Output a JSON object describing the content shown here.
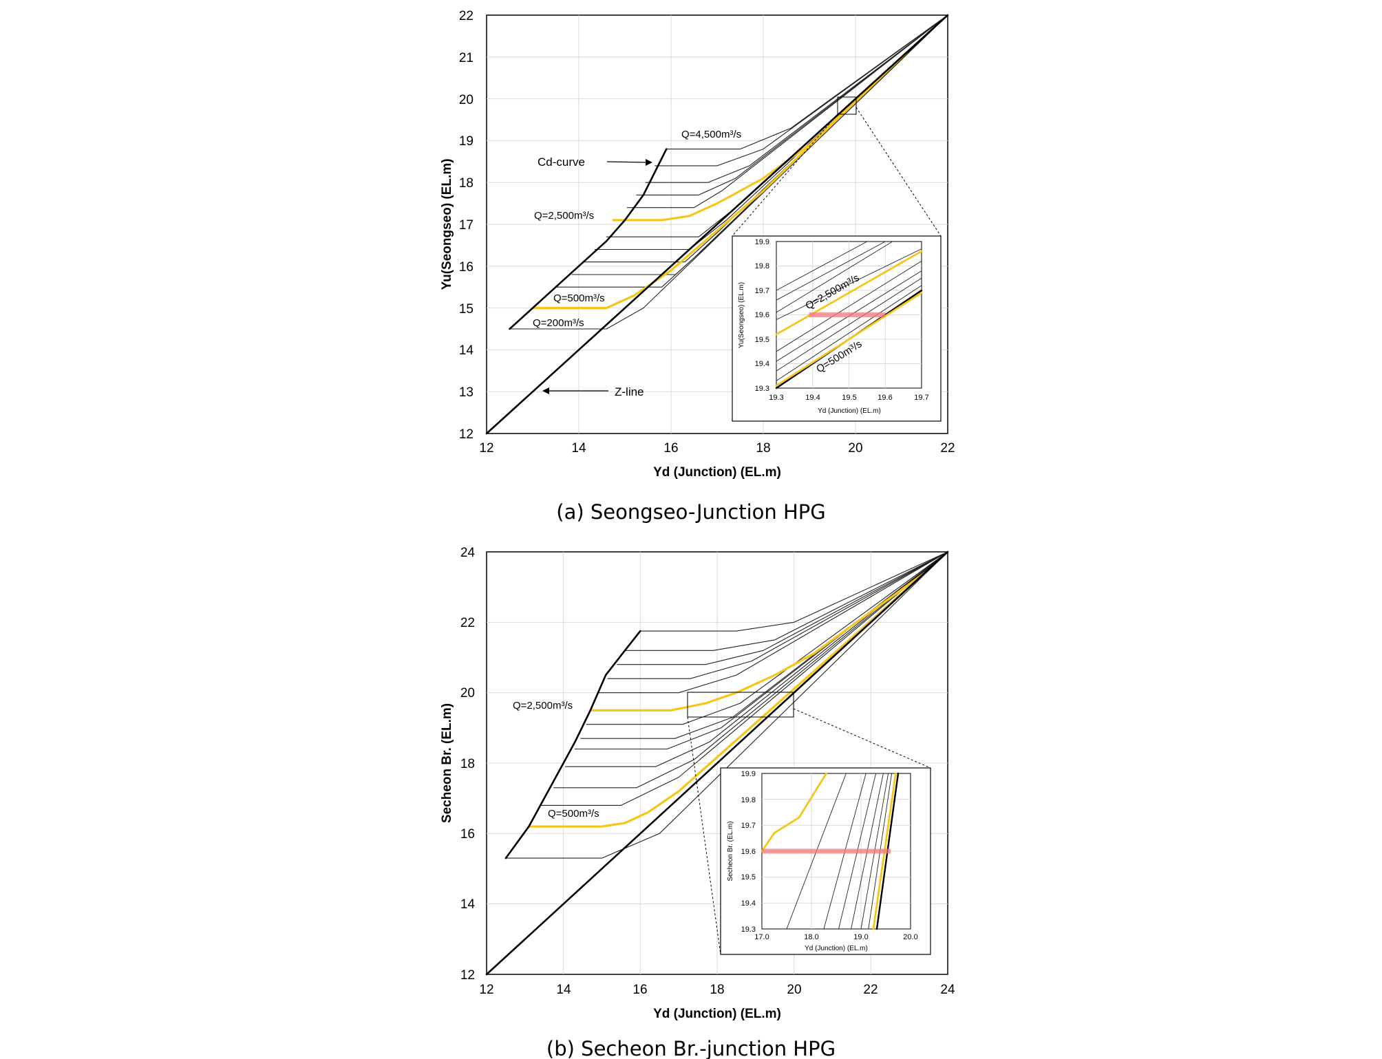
{
  "colors": {
    "highlight": "#f5c518",
    "reference": "#000000",
    "family": "#222222",
    "band": "#f07a7a",
    "grid": "#d9d9d9"
  },
  "chart_data": [
    {
      "id": "a",
      "type": "line",
      "caption": "(a) Seongseo-Junction HPG",
      "xlabel": "Yd (Junction) (EL.m)",
      "ylabel": "Yu(Seongseo) (EL.m)",
      "xlim": [
        12,
        22
      ],
      "ylim": [
        12,
        22
      ],
      "xticks": [
        "12",
        "14",
        "16",
        "18",
        "20",
        "22"
      ],
      "yticks": [
        "12",
        "13",
        "14",
        "15",
        "16",
        "17",
        "18",
        "19",
        "20",
        "21",
        "22"
      ],
      "grid": true,
      "annotations": {
        "cd": "Cd-curve",
        "z": "Z-line",
        "q4500": "Q=4,500m³/s",
        "q2500": "Q=2,500m³/s",
        "q500": "Q=500m³/s",
        "q200": "Q=200m³/s"
      },
      "z_line": {
        "x": [
          12,
          22
        ],
        "y": [
          12,
          22
        ]
      },
      "cd_curve": {
        "x": [
          12.5,
          13.0,
          13.6,
          14.1,
          14.6,
          15.0,
          15.4,
          15.9
        ],
        "y": [
          14.5,
          15.0,
          15.6,
          16.1,
          16.6,
          17.1,
          17.7,
          18.8
        ]
      },
      "family": [
        {
          "x": [
            12.5,
            14.6,
            15.4,
            22
          ],
          "y": [
            14.5,
            14.5,
            15.0,
            22
          ]
        },
        {
          "x": [
            13.5,
            15.8,
            16.5,
            22
          ],
          "y": [
            15.5,
            15.5,
            16.2,
            22
          ]
        },
        {
          "x": [
            13.85,
            16.1,
            16.8,
            22
          ],
          "y": [
            15.8,
            15.8,
            16.5,
            22
          ]
        },
        {
          "x": [
            14.1,
            16.3,
            17.0,
            22
          ],
          "y": [
            16.1,
            16.1,
            16.8,
            22
          ]
        },
        {
          "x": [
            14.35,
            16.4,
            17.2,
            22
          ],
          "y": [
            16.4,
            16.4,
            17.1,
            22
          ]
        },
        {
          "x": [
            14.6,
            16.6,
            17.4,
            22
          ],
          "y": [
            16.7,
            16.7,
            17.4,
            22
          ]
        },
        {
          "x": [
            15.05,
            16.5,
            17.1,
            22
          ],
          "y": [
            17.4,
            17.4,
            17.8,
            22
          ]
        },
        {
          "x": [
            15.25,
            16.6,
            17.4,
            22
          ],
          "y": [
            17.7,
            17.7,
            18.1,
            22
          ]
        },
        {
          "x": [
            15.45,
            16.8,
            17.7,
            22
          ],
          "y": [
            18.0,
            18.0,
            18.4,
            22
          ]
        },
        {
          "x": [
            15.65,
            17.0,
            18.0,
            22
          ],
          "y": [
            18.4,
            18.4,
            18.8,
            22
          ]
        },
        {
          "x": [
            15.9,
            17.5,
            18.6,
            19.6,
            22
          ],
          "y": [
            18.8,
            18.8,
            19.3,
            20.1,
            22
          ]
        }
      ],
      "highlight": [
        {
          "name": "Q=2,500m³/s",
          "x": [
            14.75,
            15.8,
            16.4,
            17.0,
            18.0,
            19.0,
            21.1
          ],
          "y": [
            17.1,
            17.1,
            17.2,
            17.5,
            18.1,
            18.9,
            21.1
          ]
        },
        {
          "name": "Q=500m³/s",
          "x": [
            13.0,
            14.6,
            15.2,
            16.0,
            18.0,
            21.1
          ],
          "y": [
            15.0,
            15.0,
            15.3,
            15.9,
            17.8,
            21.1
          ]
        }
      ],
      "inset": {
        "xlabel": "Yd (Junction) (EL.m)",
        "ylabel": "Yu(Seongseo) (EL.m)",
        "xlim": [
          19.3,
          19.7
        ],
        "ylim": [
          19.3,
          19.9
        ],
        "xticks": [
          "19.3",
          "19.4",
          "19.5",
          "19.6",
          "19.7"
        ],
        "yticks": [
          "19.3",
          "19.4",
          "19.5",
          "19.6",
          "19.7",
          "19.8",
          "19.9"
        ],
        "annotations": {
          "q2500": "Q=2,500m³/s",
          "q500": "Q=500m³/s"
        },
        "family": [
          {
            "x": [
              19.3,
              19.55
            ],
            "y": [
              19.7,
              19.9
            ]
          },
          {
            "x": [
              19.3,
              19.6
            ],
            "y": [
              19.66,
              19.9
            ]
          },
          {
            "x": [
              19.3,
              19.62
            ],
            "y": [
              19.61,
              19.9
            ]
          },
          {
            "x": [
              19.3,
              19.7
            ],
            "y": [
              19.58,
              19.87
            ]
          },
          {
            "x": [
              19.3,
              19.7
            ],
            "y": [
              19.45,
              19.82
            ]
          },
          {
            "x": [
              19.3,
              19.7
            ],
            "y": [
              19.41,
              19.78
            ]
          },
          {
            "x": [
              19.3,
              19.7
            ],
            "y": [
              19.37,
              19.75
            ]
          },
          {
            "x": [
              19.3,
              19.7
            ],
            "y": [
              19.33,
              19.72
            ]
          }
        ],
        "highlight": [
          {
            "name": "Q=2,500m³/s",
            "x": [
              19.3,
              19.7
            ],
            "y": [
              19.52,
              19.86
            ]
          },
          {
            "name": "Q=500m³/s",
            "x": [
              19.3,
              19.7
            ],
            "y": [
              19.31,
              19.69
            ]
          }
        ],
        "z_line": {
          "x": [
            19.3,
            19.7
          ],
          "y": [
            19.3,
            19.7
          ]
        },
        "band": {
          "x": [
            19.39,
            19.6
          ],
          "y": 19.6
        }
      }
    },
    {
      "id": "b",
      "type": "line",
      "caption": "(b) Secheon Br.-junction HPG",
      "xlabel": "Yd (Junction) (EL.m)",
      "ylabel": "Secheon Br. (EL.m)",
      "xlim": [
        12,
        24
      ],
      "ylim": [
        12,
        24
      ],
      "xticks": [
        "12",
        "14",
        "16",
        "18",
        "20",
        "22",
        "24"
      ],
      "yticks": [
        "12",
        "14",
        "16",
        "18",
        "20",
        "22",
        "24"
      ],
      "grid": true,
      "annotations": {
        "q2500": "Q=2,500m³/s",
        "q500": "Q=500m³/s"
      },
      "z_line": {
        "x": [
          12,
          24
        ],
        "y": [
          12,
          24
        ]
      },
      "cd_curve": {
        "x": [
          12.5,
          13.1,
          13.7,
          14.3,
          14.7,
          15.1,
          15.6,
          16.0
        ],
        "y": [
          15.3,
          16.2,
          17.4,
          18.6,
          19.5,
          20.5,
          21.2,
          21.75
        ]
      },
      "family": [
        {
          "x": [
            12.5,
            15.0,
            16.5,
            24
          ],
          "y": [
            15.3,
            15.3,
            16.0,
            24
          ]
        },
        {
          "x": [
            13.4,
            15.5,
            17.0,
            24
          ],
          "y": [
            16.8,
            16.8,
            17.6,
            24
          ]
        },
        {
          "x": [
            13.75,
            15.9,
            17.4,
            24
          ],
          "y": [
            17.3,
            17.3,
            18.1,
            24
          ]
        },
        {
          "x": [
            14.05,
            16.4,
            17.8,
            24
          ],
          "y": [
            17.9,
            17.9,
            18.6,
            24
          ]
        },
        {
          "x": [
            14.3,
            16.7,
            18.1,
            24
          ],
          "y": [
            18.4,
            18.4,
            19.0,
            24
          ]
        },
        {
          "x": [
            14.45,
            16.9,
            18.4,
            24
          ],
          "y": [
            18.7,
            18.7,
            19.3,
            24
          ]
        },
        {
          "x": [
            14.6,
            17.1,
            18.6,
            24
          ],
          "y": [
            19.1,
            19.1,
            19.7,
            24
          ]
        },
        {
          "x": [
            14.9,
            17.0,
            18.5,
            24
          ],
          "y": [
            20.0,
            20.0,
            20.5,
            24
          ]
        },
        {
          "x": [
            15.15,
            17.3,
            18.9,
            24
          ],
          "y": [
            20.4,
            20.4,
            20.9,
            24
          ]
        },
        {
          "x": [
            15.4,
            17.7,
            19.2,
            24
          ],
          "y": [
            20.8,
            20.8,
            21.2,
            24
          ]
        },
        {
          "x": [
            15.6,
            17.9,
            19.5,
            24
          ],
          "y": [
            21.2,
            21.2,
            21.5,
            24
          ]
        },
        {
          "x": [
            16.0,
            18.5,
            20.0,
            24
          ],
          "y": [
            21.75,
            21.75,
            22.0,
            24
          ]
        }
      ],
      "highlight": [
        {
          "name": "Q=2,500m³/s",
          "x": [
            14.75,
            16.8,
            17.7,
            18.5,
            19.5,
            20.5,
            21.5,
            23.4
          ],
          "y": [
            19.5,
            19.5,
            19.7,
            20.0,
            20.5,
            21.1,
            21.9,
            23.4
          ]
        },
        {
          "name": "Q=500m³/s",
          "x": [
            13.1,
            15.0,
            15.6,
            16.2,
            17.0,
            23.4
          ],
          "y": [
            16.2,
            16.2,
            16.3,
            16.6,
            17.2,
            23.4
          ]
        }
      ],
      "inset": {
        "xlabel": "Yd (Junction) (EL.m)",
        "ylabel": "Secheon Br. (EL.m)",
        "xlim": [
          17.0,
          20.0
        ],
        "ylim": [
          19.3,
          19.9
        ],
        "xticks": [
          "17.0",
          "18.0",
          "19.0",
          "20.0"
        ],
        "yticks": [
          "19.3",
          "19.4",
          "19.5",
          "19.6",
          "19.7",
          "19.8",
          "19.9"
        ],
        "family": [
          {
            "x": [
              17.5,
              18.7
            ],
            "y": [
              19.3,
              19.9
            ]
          },
          {
            "x": [
              18.25,
              19.1
            ],
            "y": [
              19.3,
              19.9
            ]
          },
          {
            "x": [
              18.55,
              19.3
            ],
            "y": [
              19.3,
              19.9
            ]
          },
          {
            "x": [
              18.8,
              19.45
            ],
            "y": [
              19.3,
              19.9
            ]
          },
          {
            "x": [
              19.0,
              19.55
            ],
            "y": [
              19.3,
              19.9
            ]
          },
          {
            "x": [
              19.15,
              19.62
            ],
            "y": [
              19.3,
              19.9
            ]
          }
        ],
        "highlight": [
          {
            "name": "Q=2,500m³/s",
            "x": [
              17.0,
              17.25,
              17.75,
              18.3
            ],
            "y": [
              19.6,
              19.67,
              19.73,
              19.9
            ]
          },
          {
            "name": "Q=500m³/s",
            "x": [
              19.25,
              19.7
            ],
            "y": [
              19.3,
              19.9
            ]
          }
        ],
        "z_line": {
          "x": [
            19.32,
            19.75
          ],
          "y": [
            19.3,
            19.9
          ]
        },
        "band": {
          "x": [
            17.0,
            19.6
          ],
          "y": 19.6
        }
      }
    }
  ]
}
